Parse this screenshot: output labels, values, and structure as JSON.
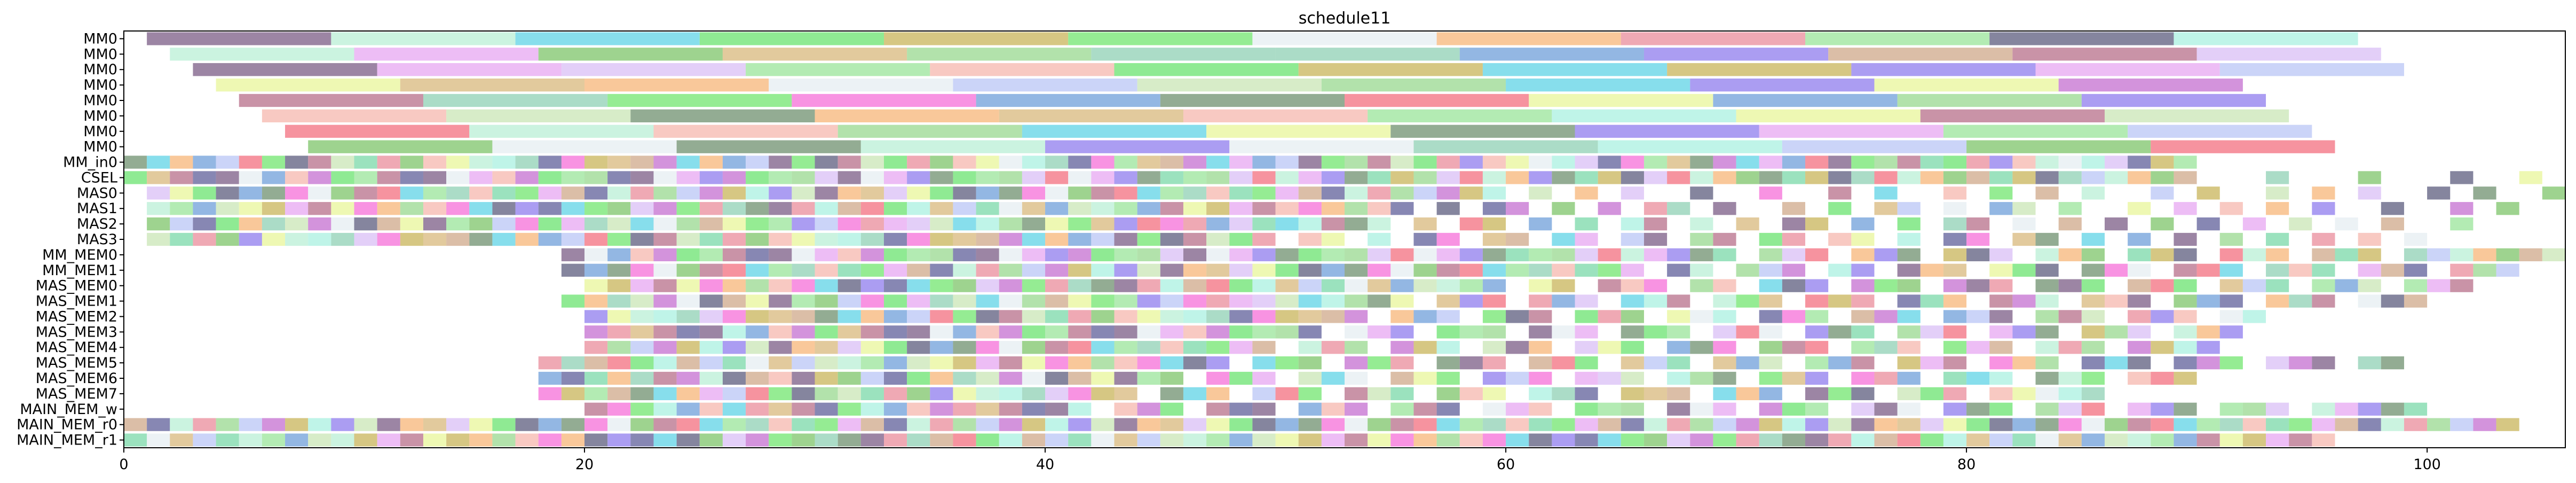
{
  "chart_data": {
    "type": "gantt",
    "title": "schedule11",
    "xlabel": "",
    "ylabel": "",
    "xlim": [
      0,
      106
    ],
    "x_ticks": [
      0,
      20,
      40,
      60,
      80,
      100
    ],
    "grid": false,
    "rows": [
      "MM0",
      "MM0",
      "MM0",
      "MM0",
      "MM0",
      "MM0",
      "MM0",
      "MM0",
      "MM_in0",
      "CSEL",
      "MAS0",
      "MAS1",
      "MAS2",
      "MAS3",
      "MM_MEM0",
      "MM_MEM1",
      "MAS_MEM0",
      "MAS_MEM1",
      "MAS_MEM2",
      "MAS_MEM3",
      "MAS_MEM4",
      "MAS_MEM5",
      "MAS_MEM6",
      "MAS_MEM7",
      "MAIN_MEM_w",
      "MAIN_MEM_r0",
      "MAIN_MEM_r1"
    ],
    "palette": [
      "#7b5c86",
      "#b9efd6",
      "#5fd3e6",
      "#69e36f",
      "#c8b45a",
      "#72e56f",
      "#e5eef1",
      "#f7b578",
      "#e98c9b",
      "#9ae49a",
      "#5c5c7e",
      "#a9f0e0",
      "#e7a7f2",
      "#7ec46a",
      "#d8b87c",
      "#98d88f",
      "#8fd0b4",
      "#6f9fd9",
      "#8f7cee",
      "#cfa88a",
      "#b76f8a",
      "#d9bff5",
      "#b9c6f5",
      "#f6b7ad",
      "#6f906f",
      "#c9e6b5",
      "#5f5f9a",
      "#f36f7f",
      "#e8f59a",
      "#c46fd0",
      "#79d8a8",
      "#f56fd8"
    ],
    "intervals": [
      {
        "row": 0,
        "start": 1,
        "end": 9,
        "color": 0
      },
      {
        "row": 0,
        "start": 9,
        "end": 17,
        "color": 1
      },
      {
        "row": 0,
        "start": 17,
        "end": 25,
        "color": 2
      },
      {
        "row": 0,
        "start": 25,
        "end": 33,
        "color": 3
      },
      {
        "row": 0,
        "start": 33,
        "end": 41,
        "color": 4
      },
      {
        "row": 0,
        "start": 41,
        "end": 49,
        "color": 5
      },
      {
        "row": 0,
        "start": 49,
        "end": 57,
        "color": 6
      },
      {
        "row": 0,
        "start": 57,
        "end": 65,
        "color": 7
      },
      {
        "row": 0,
        "start": 65,
        "end": 73,
        "color": 8
      },
      {
        "row": 0,
        "start": 73,
        "end": 81,
        "color": 9
      },
      {
        "row": 0,
        "start": 81,
        "end": 89,
        "color": 10
      },
      {
        "row": 0,
        "start": 89,
        "end": 97,
        "color": 11
      },
      {
        "row": 1,
        "start": 2,
        "end": 10,
        "color": 1
      },
      {
        "row": 1,
        "start": 10,
        "end": 18,
        "color": 12
      },
      {
        "row": 1,
        "start": 18,
        "end": 26,
        "color": 13
      },
      {
        "row": 1,
        "start": 26,
        "end": 34,
        "color": 14
      },
      {
        "row": 1,
        "start": 34,
        "end": 42,
        "color": 15
      },
      {
        "row": 1,
        "start": 42,
        "end": 50,
        "color": 16
      },
      {
        "row": 1,
        "start": 50,
        "end": 58,
        "color": 16
      },
      {
        "row": 1,
        "start": 58,
        "end": 66,
        "color": 17
      },
      {
        "row": 1,
        "start": 66,
        "end": 74,
        "color": 18
      },
      {
        "row": 1,
        "start": 74,
        "end": 82,
        "color": 19
      },
      {
        "row": 1,
        "start": 82,
        "end": 90,
        "color": 20
      },
      {
        "row": 1,
        "start": 90,
        "end": 98,
        "color": 21
      },
      {
        "row": 2,
        "start": 3,
        "end": 11,
        "color": 0
      },
      {
        "row": 2,
        "start": 11,
        "end": 19,
        "color": 12
      },
      {
        "row": 2,
        "start": 19,
        "end": 27,
        "color": 21
      },
      {
        "row": 2,
        "start": 27,
        "end": 35,
        "color": 9
      },
      {
        "row": 2,
        "start": 35,
        "end": 43,
        "color": 23
      },
      {
        "row": 2,
        "start": 43,
        "end": 51,
        "color": 3
      },
      {
        "row": 2,
        "start": 51,
        "end": 59,
        "color": 4
      },
      {
        "row": 2,
        "start": 59,
        "end": 67,
        "color": 2
      },
      {
        "row": 2,
        "start": 67,
        "end": 75,
        "color": 4
      },
      {
        "row": 2,
        "start": 75,
        "end": 83,
        "color": 18
      },
      {
        "row": 2,
        "start": 83,
        "end": 91,
        "color": 12
      },
      {
        "row": 2,
        "start": 91,
        "end": 99,
        "color": 22
      },
      {
        "row": 3,
        "start": 4,
        "end": 12,
        "color": 28
      },
      {
        "row": 3,
        "start": 12,
        "end": 20,
        "color": 14
      },
      {
        "row": 3,
        "start": 20,
        "end": 28,
        "color": 7
      },
      {
        "row": 3,
        "start": 28,
        "end": 36,
        "color": 6
      },
      {
        "row": 3,
        "start": 36,
        "end": 44,
        "color": 22
      },
      {
        "row": 3,
        "start": 44,
        "end": 52,
        "color": 25
      },
      {
        "row": 3,
        "start": 52,
        "end": 60,
        "color": 15
      },
      {
        "row": 3,
        "start": 60,
        "end": 68,
        "color": 2
      },
      {
        "row": 3,
        "start": 68,
        "end": 76,
        "color": 18
      },
      {
        "row": 3,
        "start": 76,
        "end": 84,
        "color": 28
      },
      {
        "row": 3,
        "start": 84,
        "end": 92,
        "color": 29
      },
      {
        "row": 4,
        "start": 5,
        "end": 13,
        "color": 20
      },
      {
        "row": 4,
        "start": 13,
        "end": 21,
        "color": 16
      },
      {
        "row": 4,
        "start": 21,
        "end": 29,
        "color": 5
      },
      {
        "row": 4,
        "start": 29,
        "end": 37,
        "color": 31
      },
      {
        "row": 4,
        "start": 37,
        "end": 45,
        "color": 17
      },
      {
        "row": 4,
        "start": 45,
        "end": 53,
        "color": 24
      },
      {
        "row": 4,
        "start": 53,
        "end": 61,
        "color": 27
      },
      {
        "row": 4,
        "start": 61,
        "end": 69,
        "color": 28
      },
      {
        "row": 4,
        "start": 69,
        "end": 77,
        "color": 17
      },
      {
        "row": 4,
        "start": 77,
        "end": 85,
        "color": 15
      },
      {
        "row": 4,
        "start": 85,
        "end": 93,
        "color": 18
      },
      {
        "row": 5,
        "start": 6,
        "end": 14,
        "color": 23
      },
      {
        "row": 5,
        "start": 14,
        "end": 22,
        "color": 25
      },
      {
        "row": 5,
        "start": 22,
        "end": 30,
        "color": 24
      },
      {
        "row": 5,
        "start": 30,
        "end": 38,
        "color": 7
      },
      {
        "row": 5,
        "start": 38,
        "end": 46,
        "color": 14
      },
      {
        "row": 5,
        "start": 46,
        "end": 54,
        "color": 23
      },
      {
        "row": 5,
        "start": 54,
        "end": 62,
        "color": 9
      },
      {
        "row": 5,
        "start": 62,
        "end": 70,
        "color": 11
      },
      {
        "row": 5,
        "start": 70,
        "end": 78,
        "color": 28
      },
      {
        "row": 5,
        "start": 78,
        "end": 86,
        "color": 20
      },
      {
        "row": 5,
        "start": 86,
        "end": 94,
        "color": 25
      },
      {
        "row": 6,
        "start": 7,
        "end": 15,
        "color": 27
      },
      {
        "row": 6,
        "start": 15,
        "end": 23,
        "color": 1
      },
      {
        "row": 6,
        "start": 23,
        "end": 31,
        "color": 23
      },
      {
        "row": 6,
        "start": 31,
        "end": 39,
        "color": 15
      },
      {
        "row": 6,
        "start": 39,
        "end": 47,
        "color": 2
      },
      {
        "row": 6,
        "start": 47,
        "end": 55,
        "color": 28
      },
      {
        "row": 6,
        "start": 55,
        "end": 63,
        "color": 24
      },
      {
        "row": 6,
        "start": 63,
        "end": 71,
        "color": 18
      },
      {
        "row": 6,
        "start": 71,
        "end": 79,
        "color": 12
      },
      {
        "row": 6,
        "start": 79,
        "end": 87,
        "color": 9
      },
      {
        "row": 6,
        "start": 87,
        "end": 95,
        "color": 22
      },
      {
        "row": 7,
        "start": 8,
        "end": 16,
        "color": 13
      },
      {
        "row": 7,
        "start": 16,
        "end": 24,
        "color": 6
      },
      {
        "row": 7,
        "start": 24,
        "end": 32,
        "color": 24
      },
      {
        "row": 7,
        "start": 32,
        "end": 40,
        "color": 1
      },
      {
        "row": 7,
        "start": 40,
        "end": 48,
        "color": 18
      },
      {
        "row": 7,
        "start": 48,
        "end": 56,
        "color": 6
      },
      {
        "row": 7,
        "start": 56,
        "end": 64,
        "color": 16
      },
      {
        "row": 7,
        "start": 64,
        "end": 72,
        "color": 11
      },
      {
        "row": 7,
        "start": 72,
        "end": 80,
        "color": 22
      },
      {
        "row": 7,
        "start": 80,
        "end": 88,
        "color": 13
      },
      {
        "row": 7,
        "start": 88,
        "end": 96,
        "color": 27
      }
    ],
    "dense_rows": [
      {
        "row": 8,
        "start": 0,
        "end": 90,
        "holes": []
      },
      {
        "row": 9,
        "start": 0,
        "end": 106,
        "holes": [
          90,
          91,
          92,
          94,
          95,
          96,
          98,
          99,
          100,
          102,
          103,
          105
        ]
      },
      {
        "row": 10,
        "start": 1,
        "end": 106,
        "holes": [
          60,
          62,
          64,
          66,
          67,
          69,
          70,
          72,
          73,
          75,
          77,
          78,
          80,
          82,
          84,
          86,
          87,
          89,
          91,
          92,
          94,
          96,
          98,
          99,
          101,
          103,
          104
        ]
      },
      {
        "row": 11,
        "start": 1,
        "end": 104,
        "holes": [
          56,
          58,
          61,
          63,
          65,
          68,
          70,
          71,
          73,
          75,
          78,
          80,
          83,
          85,
          86,
          88,
          90,
          92,
          94,
          96,
          97,
          99,
          100,
          102
        ]
      },
      {
        "row": 12,
        "start": 1,
        "end": 102,
        "holes": [
          55,
          57,
          60,
          62,
          64,
          67,
          69,
          71,
          74,
          76,
          78,
          81,
          83,
          85,
          87,
          89,
          91,
          93,
          95,
          97,
          99,
          100
        ]
      },
      {
        "row": 13,
        "start": 1,
        "end": 100,
        "holes": [
          50,
          53,
          55,
          58,
          61,
          64,
          67,
          70,
          73,
          76,
          78,
          81,
          84,
          86,
          88,
          90,
          92,
          94,
          96,
          98
        ]
      },
      {
        "row": 14,
        "start": 19,
        "end": 106,
        "holes": [
          70,
          74,
          78,
          82,
          86,
          90,
          94,
          98
        ]
      },
      {
        "row": 15,
        "start": 19,
        "end": 104,
        "holes": [
          66,
          69,
          73,
          76,
          80,
          84,
          88,
          92,
          96,
          100
        ]
      },
      {
        "row": 16,
        "start": 20,
        "end": 102,
        "holes": [
          60,
          63,
          67,
          70,
          74,
          78,
          82,
          86,
          90,
          94,
          98
        ]
      },
      {
        "row": 17,
        "start": 19,
        "end": 100,
        "holes": [
          56,
          60,
          64,
          68,
          72,
          76,
          80,
          84,
          88,
          92,
          96
        ]
      },
      {
        "row": 18,
        "start": 20,
        "end": 93,
        "holes": [
          54,
          58,
          62,
          66,
          70,
          74,
          78,
          82,
          86,
          90
        ]
      },
      {
        "row": 19,
        "start": 20,
        "end": 92,
        "holes": [
          52,
          56,
          60,
          64,
          68,
          72,
          76,
          80,
          84,
          88
        ]
      },
      {
        "row": 20,
        "start": 20,
        "end": 91,
        "holes": [
          50,
          54,
          58,
          62,
          66,
          70,
          74,
          78,
          82,
          86
        ]
      },
      {
        "row": 21,
        "start": 18,
        "end": 99,
        "holes": [
          48,
          52,
          56,
          60,
          64,
          68,
          72,
          76,
          80,
          84,
          88,
          92,
          96
        ]
      },
      {
        "row": 22,
        "start": 18,
        "end": 90,
        "holes": [
          46,
          50,
          54,
          58,
          62,
          66,
          70,
          74,
          78,
          82,
          86
        ]
      },
      {
        "row": 23,
        "start": 18,
        "end": 86,
        "holes": [
          44,
          48,
          52,
          56,
          60,
          64,
          68,
          72,
          76,
          80
        ]
      },
      {
        "row": 24,
        "start": 20,
        "end": 100,
        "holes": [
          42,
          46,
          50,
          54,
          58,
          62,
          66,
          70,
          74,
          78,
          82,
          86,
          90,
          94
        ]
      },
      {
        "row": 25,
        "start": 0,
        "end": 104,
        "holes": []
      },
      {
        "row": 26,
        "start": 0,
        "end": 96,
        "holes": []
      }
    ]
  }
}
